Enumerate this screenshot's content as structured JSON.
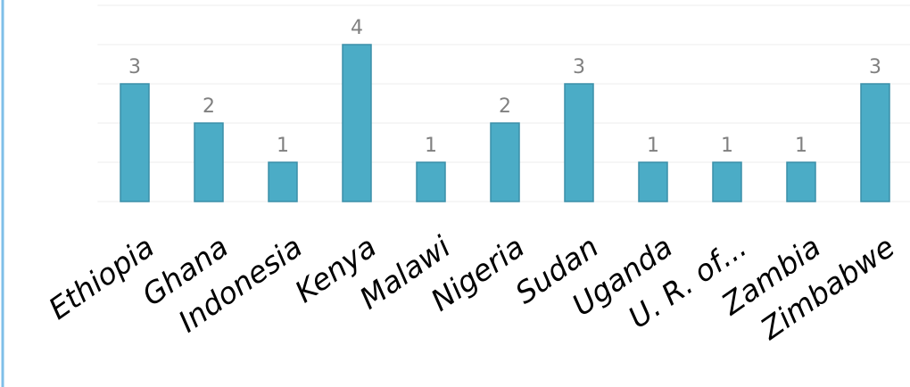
{
  "chart_data": {
    "type": "bar",
    "categories": [
      "Ethiopia",
      "Ghana",
      "Indonesia",
      "Kenya",
      "Malawi",
      "Nigeria",
      "Sudan",
      "Uganda",
      "U. R. of...",
      "Zambia",
      "Zimbabwe"
    ],
    "values": [
      3,
      2,
      1,
      4,
      1,
      2,
      3,
      1,
      1,
      1,
      3
    ],
    "color": "#4bacc6",
    "ylim": [
      0,
      5
    ],
    "yticks": [
      0,
      1,
      2,
      3,
      4,
      5
    ],
    "grid": true
  }
}
